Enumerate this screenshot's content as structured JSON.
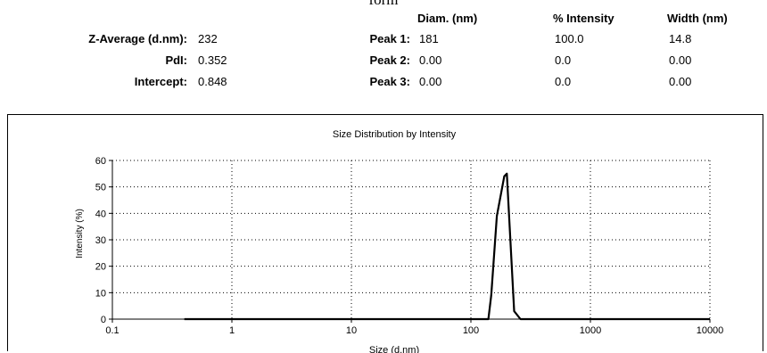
{
  "caption": "form",
  "results": {
    "headers": [
      "Diam. (nm)",
      "% Intensity",
      "Width (nm)"
    ],
    "left_rows": [
      {
        "label": "Z-Average (d.nm):",
        "value": "232"
      },
      {
        "label": "PdI:",
        "value": "0.352"
      },
      {
        "label": "Intercept:",
        "value": "0.848"
      }
    ],
    "peaks": [
      {
        "label": "Peak 1:",
        "diam": "181",
        "intensity": "100.0",
        "width": "14.8"
      },
      {
        "label": "Peak 2:",
        "diam": "0.00",
        "intensity": "0.0",
        "width": "0.00"
      },
      {
        "label": "Peak 3:",
        "diam": "0.00",
        "intensity": "0.0",
        "width": "0.00"
      }
    ]
  },
  "chart_data": {
    "type": "line",
    "title": "Size Distribution by Intensity",
    "xlabel": "Size (d.nm)",
    "ylabel": "Intensity (%)",
    "x_scale": "log",
    "xlim": [
      0.1,
      10000
    ],
    "ylim": [
      0,
      60
    ],
    "x_ticks": [
      0.1,
      1,
      10,
      100,
      1000,
      10000
    ],
    "x_tick_labels": [
      "0.1",
      "1",
      "10",
      "100",
      "1000",
      "10000"
    ],
    "y_ticks": [
      0,
      10,
      20,
      30,
      40,
      50,
      60
    ],
    "y_tick_labels": [
      "0",
      "10",
      "20",
      "30",
      "40",
      "50",
      "60"
    ],
    "grid": true,
    "series": [
      {
        "x": [
          0.4,
          140,
          148,
          165,
          190,
          200,
          230,
          260,
          10000
        ],
        "y": [
          0,
          0,
          9,
          39,
          54,
          55,
          3,
          0,
          0
        ]
      }
    ]
  }
}
